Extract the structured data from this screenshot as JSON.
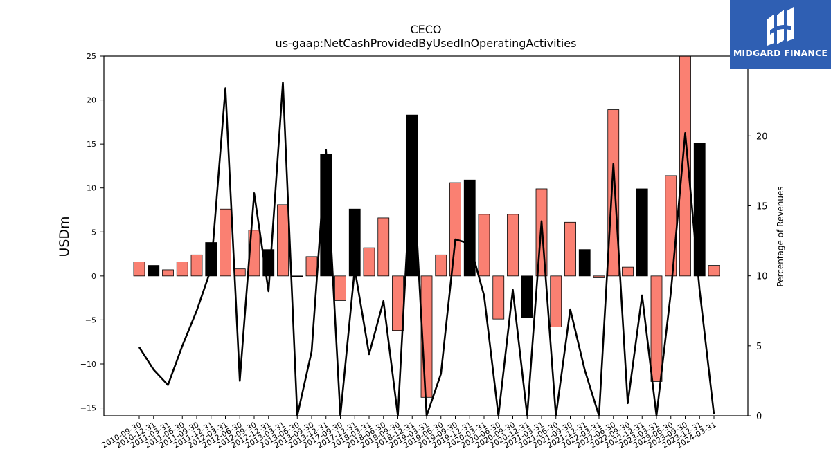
{
  "brand": {
    "name": "MIDGARD FINANCE",
    "logo_icon": "midgard-logo-icon",
    "background": "#2f5fb3"
  },
  "chart_data": {
    "type": "bar",
    "title": "CECO",
    "subtitle": "us-gaap:NetCashProvidedByUsedInOperatingActivities",
    "ylabel": "USDm",
    "y2label": "Percentage of Revenues",
    "ylim": [
      -15.9,
      25
    ],
    "y2lim": [
      0,
      25.7
    ],
    "yticks": [
      -15,
      -10,
      -5,
      0,
      5,
      10,
      15,
      20,
      25
    ],
    "y2ticks": [
      0,
      5,
      10,
      15,
      20
    ],
    "colors": {
      "positive_pct": "#fa8072",
      "bar_edge": "#000000",
      "highlight": "#000000",
      "line": "#000000"
    },
    "categories": [
      "2010-09-30",
      "2010-12-31",
      "2011-03-31",
      "2011-06-30",
      "2011-09-30",
      "2011-12-31",
      "2012-03-31",
      "2012-06-30",
      "2012-09-30",
      "2012-12-31",
      "2013-03-31",
      "2013-06-30",
      "2013-09-30",
      "2013-12-31",
      "2017-09-30",
      "2017-12-31",
      "2018-03-31",
      "2018-06-30",
      "2018-09-30",
      "2018-12-31",
      "2019-03-31",
      "2019-06-30",
      "2019-09-30",
      "2019-12-31",
      "2020-03-31",
      "2020-06-30",
      "2020-09-30",
      "2020-12-31",
      "2021-03-31",
      "2021-06-30",
      "2021-09-30",
      "2021-12-31",
      "2022-03-31",
      "2022-06-30",
      "2022-09-30",
      "2022-12-31",
      "2023-03-31",
      "2023-06-30",
      "2023-09-30",
      "2023-12-31",
      "2024-03-31"
    ],
    "series": [
      {
        "values": [
          1.6,
          1.2,
          0.7,
          1.6,
          2.4,
          3.8,
          7.6,
          0.8,
          5.2,
          3.0,
          8.1,
          0.0,
          2.2,
          13.8,
          -2.8,
          7.6,
          3.2,
          6.6,
          -6.2,
          18.3,
          -13.8,
          2.4,
          10.6,
          10.9,
          7.0,
          -4.9,
          7.0,
          -4.7,
          9.9,
          -5.8,
          6.1,
          3.0,
          -0.2,
          18.9,
          1.0,
          9.9,
          -12.0,
          11.4,
          25.8,
          15.1,
          1.2
        ],
        "highlight": [
          false,
          true,
          false,
          false,
          false,
          true,
          false,
          false,
          false,
          true,
          false,
          true,
          false,
          true,
          false,
          true,
          false,
          false,
          false,
          true,
          false,
          false,
          false,
          true,
          false,
          false,
          false,
          true,
          false,
          false,
          false,
          true,
          false,
          false,
          false,
          true,
          false,
          false,
          false,
          true,
          false
        ]
      },
      {
        "type": "line",
        "values": [
          4.9,
          3.3,
          2.2,
          5.0,
          7.5,
          10.5,
          23.4,
          2.5,
          15.9,
          8.9,
          23.8,
          0.0,
          4.6,
          19.0,
          0.0,
          10.5,
          4.4,
          8.2,
          0.0,
          19.0,
          0.0,
          3.0,
          12.6,
          12.3,
          8.6,
          0.0,
          9.0,
          0.0,
          13.9,
          0.0,
          7.6,
          3.3,
          0.0,
          18.0,
          0.9,
          8.6,
          0.0,
          8.8,
          20.2,
          9.0,
          0.1
        ]
      }
    ]
  }
}
